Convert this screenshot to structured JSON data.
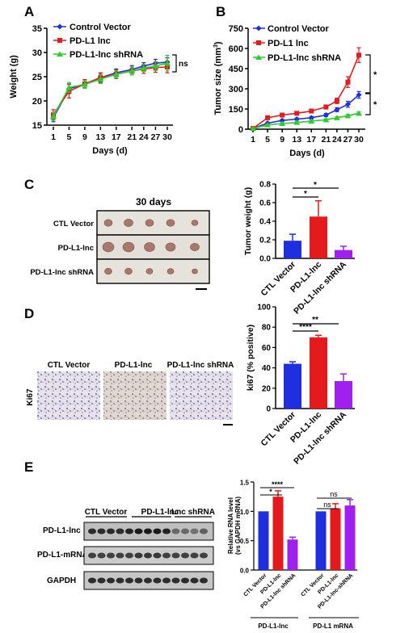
{
  "panels": {
    "A": "A",
    "B": "B",
    "C": "C",
    "D": "D",
    "E": "E"
  },
  "colors": {
    "control": "#1f2fe0",
    "pdl1": "#e41a1c",
    "shrna": "#2ecc2e",
    "purple": "#a020f0"
  },
  "chart_data": [
    {
      "panel": "A",
      "type": "line",
      "xlabel": "Days (d)",
      "ylabel": "Weight (g)",
      "x": [
        1,
        5,
        9,
        13,
        17,
        21,
        24,
        27,
        30
      ],
      "xticks": [
        "1",
        "5",
        "9",
        "13",
        "17",
        "21",
        "24",
        "27",
        "30"
      ],
      "yticks": [
        "15",
        "20",
        "25",
        "30",
        "35"
      ],
      "ylim": [
        15,
        35
      ],
      "legend": [
        "Control Vector",
        "PD-L1 lnc",
        "PD-L1-lnc shRNA"
      ],
      "annotation": "ns",
      "series": [
        {
          "name": "Control Vector",
          "values": [
            16.5,
            22.5,
            23.5,
            24.8,
            25.8,
            26.5,
            27.2,
            27.8,
            28.0
          ],
          "err": [
            0.8,
            1.0,
            0.8,
            0.9,
            0.8,
            0.8,
            0.7,
            0.8,
            0.9
          ]
        },
        {
          "name": "PD-L1 lnc",
          "values": [
            17.2,
            22.0,
            23.5,
            24.8,
            25.5,
            26.2,
            26.6,
            26.9,
            27.0
          ],
          "err": [
            1.0,
            1.4,
            0.9,
            1.0,
            0.9,
            0.8,
            0.9,
            1.0,
            1.2
          ]
        },
        {
          "name": "PD-L1-lnc shRNA",
          "values": [
            16.8,
            22.8,
            23.4,
            24.5,
            25.5,
            26.2,
            26.8,
            27.2,
            27.8
          ],
          "err": [
            0.8,
            1.0,
            0.8,
            0.9,
            0.8,
            0.8,
            0.7,
            0.9,
            1.6
          ]
        }
      ]
    },
    {
      "panel": "B",
      "type": "line",
      "xlabel": "Days (d)",
      "ylabel": "Tumor size (mm",
      "ylabel_sup": "3",
      "ylabel_end": ")",
      "x": [
        1,
        5,
        9,
        13,
        17,
        21,
        24,
        27,
        30
      ],
      "xticks": [
        "1",
        "5",
        "9",
        "13",
        "17",
        "21",
        "24",
        "27",
        "30"
      ],
      "yticks": [
        "0",
        "150",
        "300",
        "450",
        "600",
        "750"
      ],
      "ylim": [
        0,
        750
      ],
      "legend": [
        "Control Vector",
        "PD-L1 lnc",
        "PD-L1-lnc shRNA"
      ],
      "annotations": [
        "*",
        "*"
      ],
      "series": [
        {
          "name": "Control Vector",
          "values": [
            5,
            45,
            65,
            75,
            85,
            105,
            145,
            185,
            255
          ],
          "err": [
            3,
            6,
            8,
            8,
            10,
            12,
            15,
            22,
            25
          ]
        },
        {
          "name": "PD-L1 lnc",
          "values": [
            5,
            85,
            105,
            118,
            135,
            165,
            210,
            350,
            550
          ],
          "err": [
            3,
            10,
            10,
            12,
            12,
            15,
            20,
            40,
            55
          ]
        },
        {
          "name": "PD-L1-lnc shRNA",
          "values": [
            5,
            32,
            42,
            50,
            60,
            70,
            85,
            100,
            118
          ],
          "err": [
            3,
            5,
            5,
            6,
            6,
            7,
            8,
            10,
            10
          ]
        }
      ]
    },
    {
      "panel": "C",
      "type": "bar",
      "ylabel": "Tumor weight (g)",
      "categories": [
        "CTL Vector",
        "PD-L1-lnc",
        "PD-L1-lnc shRNA"
      ],
      "values": [
        0.19,
        0.45,
        0.09
      ],
      "err": [
        0.07,
        0.17,
        0.04
      ],
      "yticks": [
        "0.0",
        "0.2",
        "0.4",
        "0.6",
        "0.8"
      ],
      "ylim": [
        0,
        0.8
      ],
      "sig": [
        "*",
        "*"
      ]
    },
    {
      "panel": "D",
      "type": "bar",
      "ylabel": "ki67 (% positive)",
      "categories": [
        "CTL Vector",
        "PD-L1-lnc",
        "PD-L1-lnc shRNA"
      ],
      "values": [
        44,
        70,
        27
      ],
      "err": [
        2,
        2,
        7
      ],
      "yticks": [
        "0",
        "20",
        "40",
        "60",
        "80",
        "100"
      ],
      "ylim": [
        0,
        100
      ],
      "sig": [
        "****",
        "**"
      ]
    },
    {
      "panel": "E",
      "type": "bar",
      "ylabel": "Relative RNA level",
      "ylabel2": "(vs GAPDH mRNA)",
      "categories": [
        "CTL Vector",
        "PD-L1-lnc",
        "PD-L1-lnc shRNA",
        "CTL Vector",
        "PD-L1-lnc",
        "PD-L1-lnc-shRNA"
      ],
      "values": [
        1.0,
        1.25,
        0.52,
        1.0,
        1.05,
        1.1
      ],
      "err": [
        0,
        0.1,
        0.04,
        0,
        0.08,
        0.1
      ],
      "yticks": [
        "0.0",
        "0.5",
        "1.0",
        "1.5"
      ],
      "ylim": [
        0,
        1.5
      ],
      "group_labels": [
        "PD-L1-lnc",
        "PD-L1 mRNA"
      ],
      "sig": [
        "*",
        "****",
        "ns",
        "ns"
      ]
    }
  ],
  "panelC": {
    "title": "30 days",
    "rows": [
      "CTL Vector",
      "PD-L1-lnc",
      "PD-L1-lnc shRNA"
    ]
  },
  "panelD": {
    "side": "Ki67",
    "labels": [
      "CTL Vector",
      "PD-L1-lnc",
      "PD-L1-lnc shRNA"
    ]
  },
  "panelE": {
    "groups": [
      "CTL Vector",
      "PD-L1-lnc",
      "Lnc shRNA"
    ],
    "rows": [
      "PD-L1-lnc",
      "PD-L1-mRNA",
      "GAPDH"
    ]
  }
}
